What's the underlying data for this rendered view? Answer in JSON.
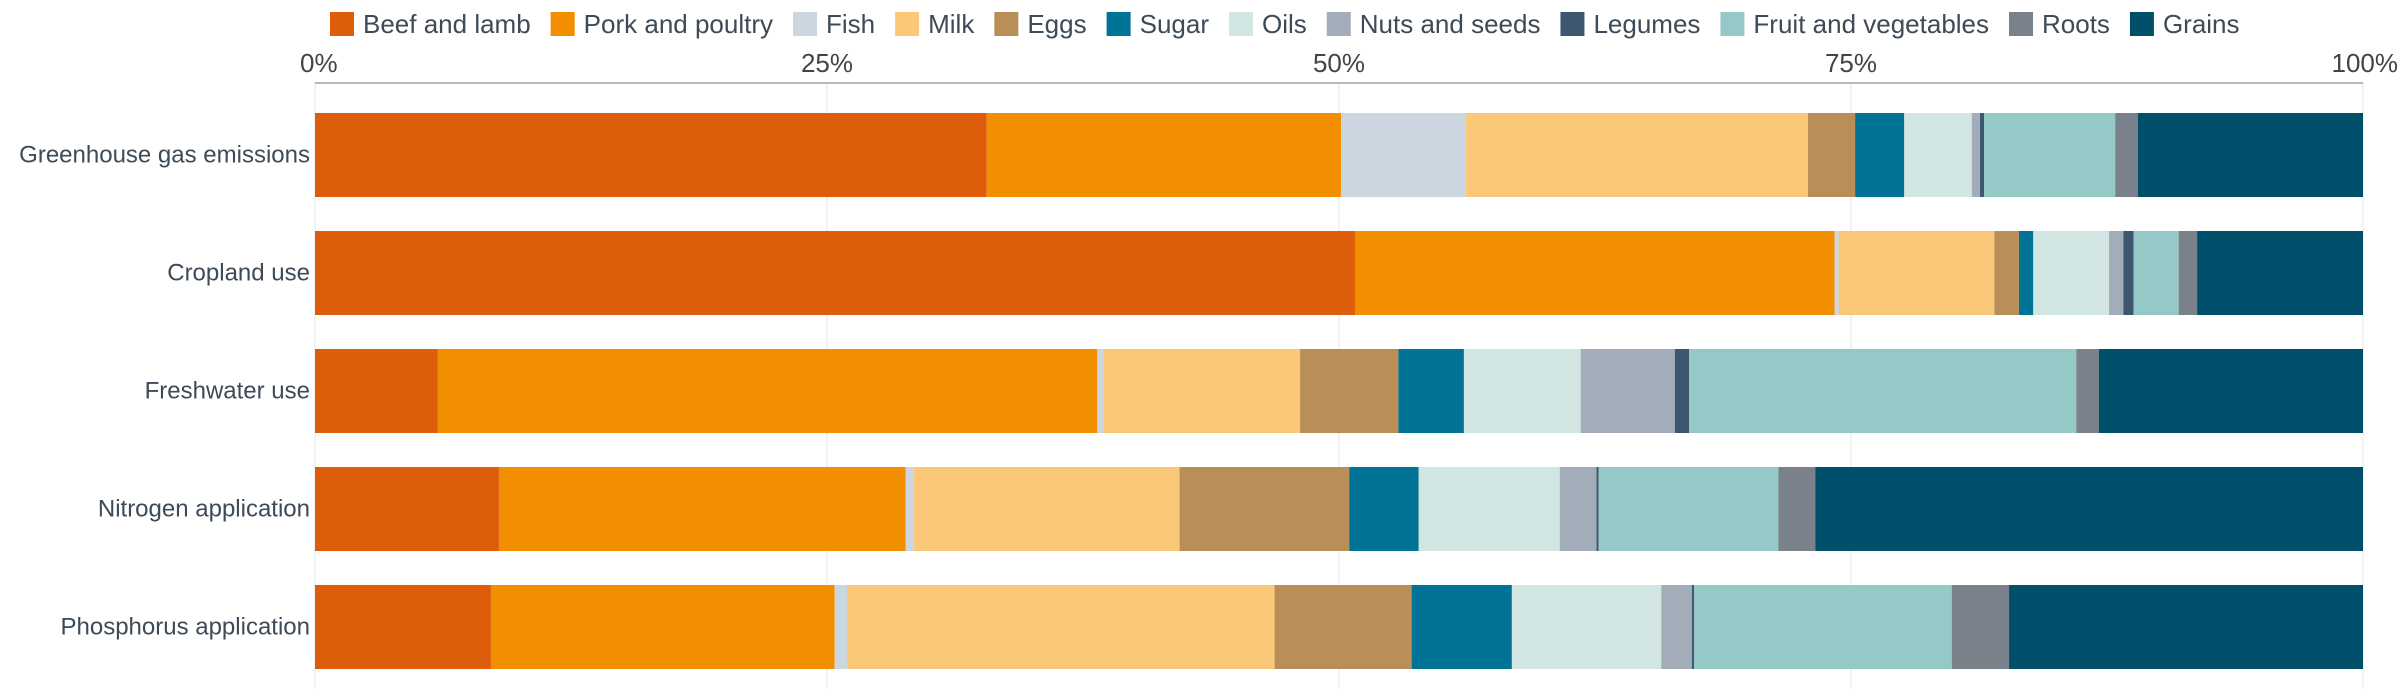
{
  "chart_data": {
    "type": "bar",
    "orientation": "horizontal",
    "stacked": "percent",
    "xlim": [
      0,
      100
    ],
    "ticks": [
      "0%",
      "25%",
      "50%",
      "75%",
      "100%"
    ],
    "legend_position": "top",
    "grid": true,
    "categories": [
      "Greenhouse gas emissions",
      "Cropland use",
      "Freshwater use",
      "Nitrogen application",
      "Phosphorus application"
    ],
    "series": [
      {
        "name": "Beef and lamb",
        "color": "#de5d0a",
        "values": [
          32.8,
          50.8,
          6.0,
          9.0,
          8.6
        ]
      },
      {
        "name": "Pork and poultry",
        "color": "#f28f00",
        "values": [
          17.3,
          23.4,
          32.2,
          19.9,
          16.8
        ]
      },
      {
        "name": "Fish",
        "color": "#ccd6e0",
        "values": [
          6.1,
          0.2,
          0.3,
          0.4,
          0.6
        ]
      },
      {
        "name": "Milk",
        "color": "#fbc87a",
        "values": [
          16.7,
          7.6,
          9.6,
          13.0,
          20.9
        ]
      },
      {
        "name": "Eggs",
        "color": "#b98f57",
        "values": [
          2.3,
          1.2,
          4.8,
          8.3,
          6.7
        ]
      },
      {
        "name": "Sugar",
        "color": "#007396",
        "values": [
          2.4,
          0.7,
          3.2,
          3.4,
          4.9
        ]
      },
      {
        "name": "Oils",
        "color": "#d1e6e3",
        "values": [
          3.3,
          3.7,
          5.7,
          6.9,
          7.3
        ]
      },
      {
        "name": "Nuts and seeds",
        "color": "#a2adb9",
        "values": [
          0.4,
          0.7,
          4.6,
          1.8,
          1.5
        ]
      },
      {
        "name": "Legumes",
        "color": "#3e5670",
        "values": [
          0.2,
          0.5,
          0.7,
          0.1,
          0.1
        ]
      },
      {
        "name": "Fruit and vegetables",
        "color": "#95c9c7",
        "values": [
          6.4,
          2.2,
          18.9,
          8.8,
          12.6
        ]
      },
      {
        "name": "Roots",
        "color": "#7a818a",
        "values": [
          1.1,
          0.9,
          1.1,
          1.8,
          2.8
        ]
      },
      {
        "name": "Grains",
        "color": "#004f6b",
        "values": [
          11.0,
          8.1,
          12.9,
          26.8,
          17.3
        ]
      }
    ]
  }
}
